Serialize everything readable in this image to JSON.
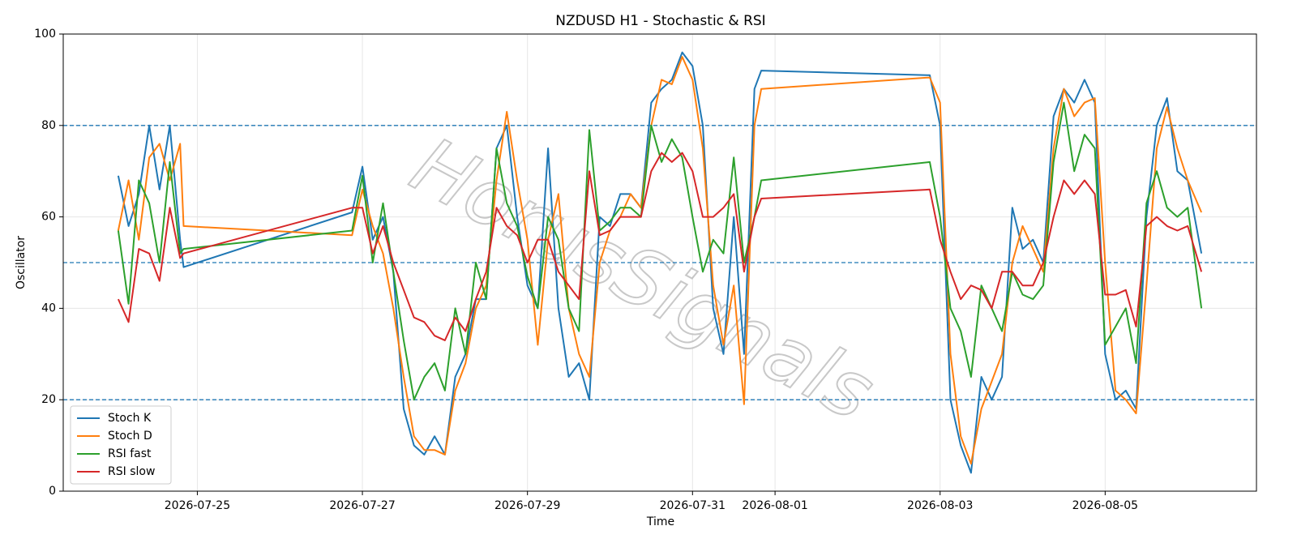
{
  "chart_data": {
    "type": "line",
    "title": "NZDUSD H1 - Stochastic & RSI",
    "x_label": "Time",
    "y_label": "Oscillator",
    "watermark": "HorusSignals",
    "x": [
      "2026-07-24 01:00",
      "2026-07-24 04:00",
      "2026-07-24 07:00",
      "2026-07-24 10:00",
      "2026-07-24 13:00",
      "2026-07-24 16:00",
      "2026-07-24 19:00",
      "2026-07-24 20:00",
      "2026-07-26 21:00",
      "2026-07-27 00:00",
      "2026-07-27 03:00",
      "2026-07-27 06:00",
      "2026-07-27 09:00",
      "2026-07-27 12:00",
      "2026-07-27 15:00",
      "2026-07-27 18:00",
      "2026-07-27 21:00",
      "2026-07-28 00:00",
      "2026-07-28 03:00",
      "2026-07-28 06:00",
      "2026-07-28 09:00",
      "2026-07-28 12:00",
      "2026-07-28 15:00",
      "2026-07-28 18:00",
      "2026-07-28 21:00",
      "2026-07-29 00:00",
      "2026-07-29 03:00",
      "2026-07-29 06:00",
      "2026-07-29 09:00",
      "2026-07-29 12:00",
      "2026-07-29 15:00",
      "2026-07-29 18:00",
      "2026-07-29 21:00",
      "2026-07-30 00:00",
      "2026-07-30 03:00",
      "2026-07-30 06:00",
      "2026-07-30 09:00",
      "2026-07-30 12:00",
      "2026-07-30 15:00",
      "2026-07-30 18:00",
      "2026-07-30 21:00",
      "2026-07-31 00:00",
      "2026-07-31 03:00",
      "2026-07-31 06:00",
      "2026-07-31 09:00",
      "2026-07-31 12:00",
      "2026-07-31 15:00",
      "2026-07-31 18:00",
      "2026-07-31 20:00",
      "2026-08-02 21:00",
      "2026-08-03 00:00",
      "2026-08-03 03:00",
      "2026-08-03 06:00",
      "2026-08-03 09:00",
      "2026-08-03 12:00",
      "2026-08-03 15:00",
      "2026-08-03 18:00",
      "2026-08-03 21:00",
      "2026-08-04 00:00",
      "2026-08-04 03:00",
      "2026-08-04 06:00",
      "2026-08-04 09:00",
      "2026-08-04 12:00",
      "2026-08-04 15:00",
      "2026-08-04 18:00",
      "2026-08-04 21:00",
      "2026-08-05 00:00",
      "2026-08-05 03:00",
      "2026-08-05 06:00",
      "2026-08-05 09:00",
      "2026-08-05 12:00",
      "2026-08-05 15:00",
      "2026-08-05 18:00",
      "2026-08-05 21:00",
      "2026-08-06 00:00",
      "2026-08-06 04:00"
    ],
    "series": [
      {
        "name": "Stoch K",
        "color": "#1f77b4",
        "values": [
          69,
          58,
          65,
          80,
          66,
          80,
          55,
          49,
          61,
          71,
          55,
          60,
          48,
          18,
          10,
          8,
          12,
          8,
          25,
          30,
          42,
          42,
          75,
          80,
          60,
          45,
          40,
          75,
          40,
          25,
          28,
          20,
          60,
          58,
          65,
          65,
          62,
          85,
          88,
          90,
          96,
          93,
          80,
          40,
          30,
          60,
          30,
          88,
          92,
          91,
          80,
          20,
          10,
          4,
          25,
          20,
          25,
          62,
          53,
          55,
          50,
          82,
          88,
          85,
          90,
          85,
          30,
          20,
          22,
          18,
          60,
          80,
          86,
          70,
          68,
          52
        ]
      },
      {
        "name": "Stoch D",
        "color": "#ff7f0e",
        "values": [
          57,
          68,
          55,
          73,
          76,
          68,
          76,
          58,
          56,
          66,
          58,
          52,
          40,
          25,
          12,
          9,
          9,
          8,
          22,
          28,
          40,
          45,
          68,
          83,
          68,
          55,
          32,
          55,
          65,
          40,
          30,
          25,
          50,
          57,
          60,
          65,
          62,
          80,
          90,
          89,
          95,
          90,
          75,
          45,
          32,
          45,
          19,
          80,
          88,
          90.5,
          85,
          30,
          12,
          6,
          18,
          24,
          30,
          50,
          58,
          53,
          48,
          75,
          88,
          82,
          85,
          86,
          50,
          22,
          20,
          17,
          45,
          75,
          84,
          75,
          68,
          61
        ]
      },
      {
        "name": "RSI fast",
        "color": "#2ca02c",
        "values": [
          57,
          41,
          68,
          63,
          50,
          72,
          52,
          53,
          57,
          69,
          50,
          63,
          48,
          33,
          20,
          25,
          28,
          22,
          40,
          30,
          50,
          42,
          75,
          63,
          58,
          47,
          40,
          60,
          55,
          40,
          35,
          79,
          57,
          59,
          62,
          62,
          60,
          80,
          72,
          77,
          73,
          60,
          48,
          55,
          52,
          73,
          50,
          60,
          68,
          72,
          60,
          40,
          35,
          25,
          45,
          40,
          35,
          48,
          43,
          42,
          45,
          72,
          85,
          70,
          78,
          75,
          32,
          36,
          40,
          28,
          63,
          70,
          62,
          60,
          62,
          40
        ]
      },
      {
        "name": "RSI slow",
        "color": "#d62728",
        "values": [
          42,
          37,
          53,
          52,
          46,
          62,
          51,
          52,
          62,
          62,
          52,
          58,
          50,
          44,
          38,
          37,
          34,
          33,
          38,
          35,
          42,
          48,
          62,
          58,
          56,
          50,
          55,
          55,
          48,
          45,
          42,
          70,
          56,
          57,
          60,
          60,
          60,
          70,
          74,
          72,
          74,
          70,
          60,
          60,
          62,
          65,
          48,
          60,
          64,
          66,
          55,
          48,
          42,
          45,
          44,
          40,
          48,
          48,
          45,
          45,
          50,
          60,
          68,
          65,
          68,
          65,
          43,
          43,
          44,
          36,
          58,
          60,
          58,
          57,
          58,
          48
        ]
      }
    ],
    "xlim": [
      "2026-07-23 09:00",
      "2026-08-06 20:00"
    ],
    "xticks": [
      "2026-07-25",
      "2026-07-27",
      "2026-07-29",
      "2026-07-31",
      "2026-08-01",
      "2026-08-03",
      "2026-08-05"
    ],
    "ylim": [
      0,
      100
    ],
    "yticks": [
      0,
      20,
      40,
      60,
      80,
      100
    ],
    "hlines": [
      20,
      50,
      80
    ],
    "hline_color": "#1f77b4",
    "grid": true,
    "legend": "lower left"
  }
}
